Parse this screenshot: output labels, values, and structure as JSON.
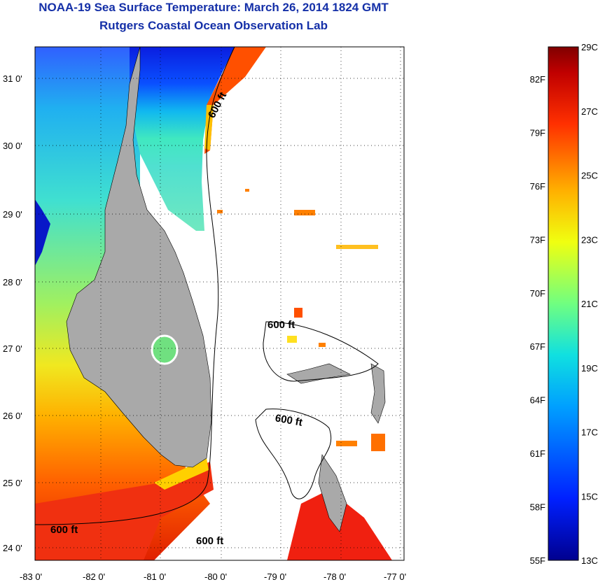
{
  "title_line1": "NOAA-19 Sea Surface Temperature:  March 26, 2014 1824 GMT",
  "title_line2": "Rutgers Coastal Ocean Observation Lab",
  "lat_labels": [
    "31 0'",
    "30 0'",
    "29 0'",
    "28 0'",
    "27 0'",
    "26 0'",
    "25 0'",
    "24 0'"
  ],
  "lon_labels": [
    "-83 0'",
    "-82 0'",
    "-81 0'",
    "-80 0'",
    "-79 0'",
    "-78 0'",
    "-77 0'"
  ],
  "contour_label": "600 ft",
  "colorbar": {
    "celsius_labels": [
      "29C",
      "27C",
      "25C",
      "23C",
      "21C",
      "19C",
      "17C",
      "15C",
      "13C"
    ],
    "fahrenheit_labels": [
      "82F",
      "79F",
      "76F",
      "73F",
      "70F",
      "67F",
      "64F",
      "61F",
      "58F",
      "55F"
    ],
    "range_c": [
      13,
      29
    ]
  },
  "colors": {
    "title": "#1530a8",
    "land": "#a9a9a9"
  }
}
